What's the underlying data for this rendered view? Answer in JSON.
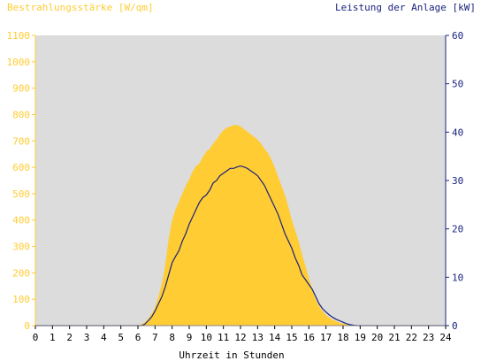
{
  "chart_data": {
    "type": "area",
    "title_left": "Bestrahlungsstärke [W/qm]",
    "title_right": "Leistung der Anlage [kW]",
    "xlabel": "Uhrzeit in Stunden",
    "x_ticks": [
      "0",
      "1",
      "2",
      "3",
      "4",
      "5",
      "6",
      "7",
      "8",
      "9",
      "10",
      "11",
      "12",
      "13",
      "14",
      "15",
      "16",
      "17",
      "18",
      "19",
      "20",
      "21",
      "22",
      "23",
      "24"
    ],
    "xlim": [
      0,
      24
    ],
    "y_left": {
      "label": "Bestrahlungsstärke [W/qm]",
      "ylim": [
        0,
        1100
      ],
      "ticks": [
        "0",
        "100",
        "200",
        "300",
        "400",
        "500",
        "600",
        "700",
        "800",
        "900",
        "1000",
        "1100"
      ]
    },
    "y_right": {
      "label": "Leistung der Anlage [kW]",
      "ylim": [
        0,
        60
      ],
      "ticks": [
        "0",
        "10",
        "20",
        "30",
        "40",
        "50",
        "60"
      ]
    },
    "grid": false,
    "colors": {
      "irradiance": "#ffcc33",
      "power": "#1a237e",
      "plot_bg": "#dcdcdc",
      "left_axis_text": "#ffcc33",
      "right_axis_text": "#1a237e",
      "x_axis_text": "#000000"
    },
    "series": [
      {
        "axis": "left",
        "style": "area",
        "x": [
          6.0,
          6.2,
          6.4,
          6.6,
          6.8,
          7.0,
          7.2,
          7.4,
          7.6,
          7.8,
          8.0,
          8.2,
          8.4,
          8.6,
          8.8,
          9.0,
          9.2,
          9.4,
          9.6,
          9.8,
          10.0,
          10.2,
          10.4,
          10.6,
          10.8,
          11.0,
          11.2,
          11.4,
          11.6,
          11.8,
          12.0,
          12.2,
          12.4,
          12.6,
          12.8,
          13.0,
          13.2,
          13.4,
          13.6,
          13.8,
          14.0,
          14.2,
          14.4,
          14.6,
          14.8,
          15.0,
          15.2,
          15.4,
          15.6,
          15.8,
          16.0,
          16.2,
          16.4,
          16.6,
          16.8,
          17.0,
          17.2,
          17.4,
          17.6,
          17.8,
          18.0,
          18.2,
          18.4,
          18.6,
          18.8,
          19.0
        ],
        "values": [
          0,
          5,
          12,
          25,
          45,
          70,
          110,
          160,
          230,
          330,
          400,
          440,
          470,
          500,
          530,
          555,
          585,
          605,
          615,
          640,
          660,
          670,
          690,
          705,
          725,
          740,
          750,
          755,
          760,
          760,
          755,
          745,
          735,
          725,
          715,
          705,
          690,
          670,
          655,
          630,
          600,
          565,
          530,
          495,
          450,
          400,
          360,
          320,
          270,
          225,
          180,
          140,
          100,
          75,
          55,
          40,
          30,
          22,
          16,
          11,
          7,
          4,
          2,
          1,
          0,
          0
        ]
      },
      {
        "axis": "right",
        "style": "line",
        "x": [
          6.0,
          6.2,
          6.4,
          6.6,
          6.8,
          7.0,
          7.2,
          7.4,
          7.6,
          7.8,
          8.0,
          8.2,
          8.4,
          8.6,
          8.8,
          9.0,
          9.2,
          9.4,
          9.6,
          9.8,
          10.0,
          10.2,
          10.4,
          10.6,
          10.8,
          11.0,
          11.2,
          11.4,
          11.6,
          11.8,
          12.0,
          12.2,
          12.4,
          12.6,
          12.8,
          13.0,
          13.2,
          13.4,
          13.6,
          13.8,
          14.0,
          14.2,
          14.4,
          14.6,
          14.8,
          15.0,
          15.2,
          15.4,
          15.6,
          15.8,
          16.0,
          16.2,
          16.4,
          16.6,
          16.8,
          17.0,
          17.2,
          17.4,
          17.6,
          17.8,
          18.0,
          18.2,
          18.4,
          18.6,
          18.8,
          19.0
        ],
        "values": [
          0,
          0,
          0.3,
          1,
          1.8,
          3,
          4.5,
          6,
          8,
          10.5,
          13,
          14.3,
          15.5,
          17.5,
          19,
          21,
          22.5,
          24,
          25.5,
          26.5,
          27,
          28,
          29.5,
          30,
          31,
          31.5,
          32,
          32.5,
          32.5,
          32.8,
          33,
          32.8,
          32.5,
          32,
          31.5,
          31,
          30,
          29,
          27.5,
          26,
          24.5,
          23,
          21,
          19,
          17.5,
          16,
          14,
          12.5,
          10.5,
          9.5,
          8.5,
          7.5,
          6,
          4.5,
          3.5,
          2.8,
          2.2,
          1.7,
          1.3,
          1,
          0.7,
          0.4,
          0.2,
          0.1,
          0,
          0
        ]
      }
    ]
  }
}
